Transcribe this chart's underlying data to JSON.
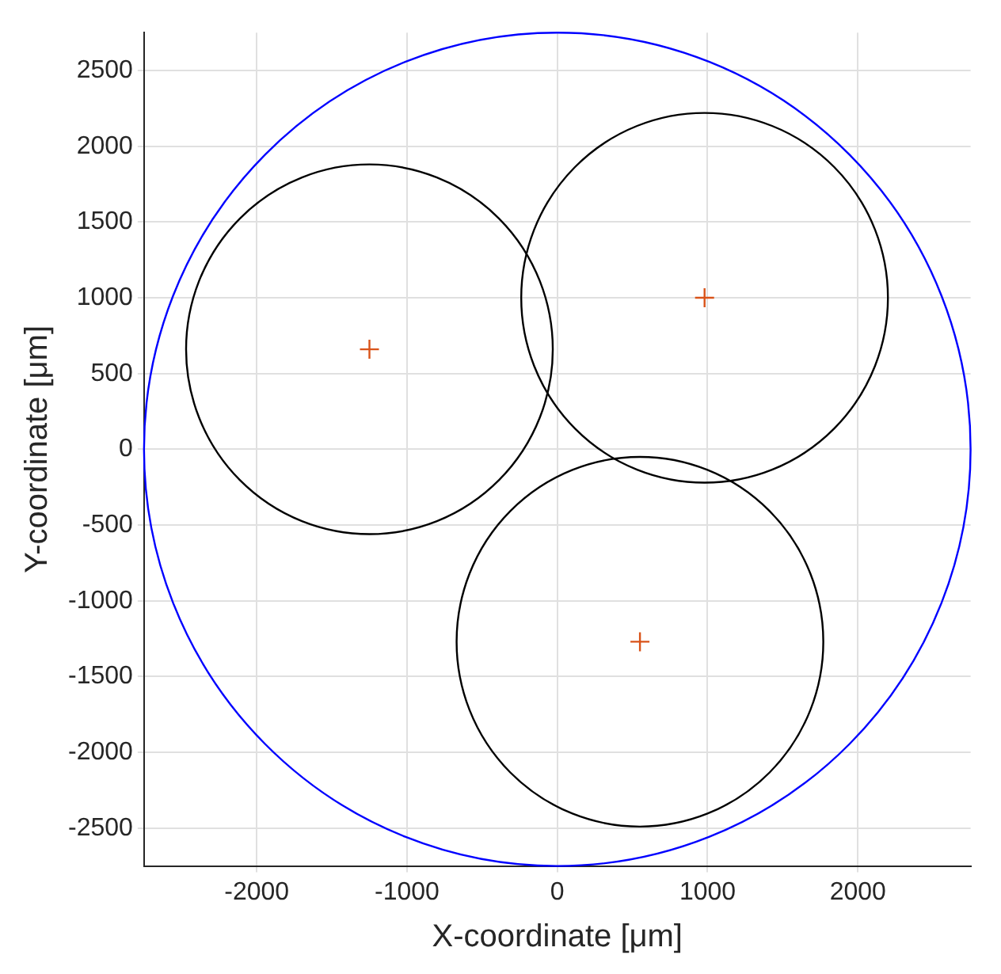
{
  "chart_data": {
    "type": "scatter",
    "xlabel": "X-coordinate [μm]",
    "ylabel": "Y-coordinate [μm]",
    "xlim": [
      -2750,
      2750
    ],
    "ylim": [
      -2750,
      2750
    ],
    "xticks": [
      -2000,
      -1000,
      0,
      1000,
      2000
    ],
    "yticks": [
      -2500,
      -2000,
      -1500,
      -1000,
      -500,
      0,
      500,
      1000,
      1500,
      2000,
      2500
    ],
    "grid": true,
    "legend": false,
    "series": [
      {
        "color": "#d95319",
        "marker": "cross",
        "x": [
          -1250,
          980,
          550
        ],
        "values": [
          660,
          1000,
          -1270
        ]
      }
    ]
  }
}
